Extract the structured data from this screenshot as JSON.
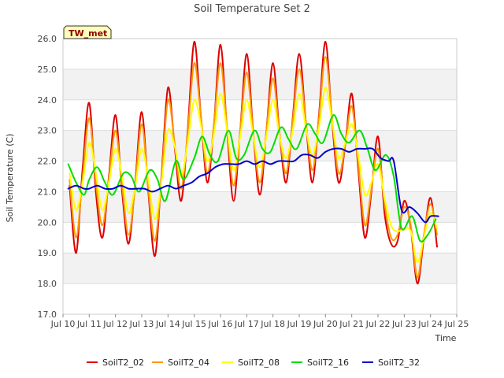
{
  "chart_data": {
    "type": "line",
    "title": "Soil Temperature Set 2",
    "xlabel": "Time",
    "ylabel": "Soil Temperature (C)",
    "badge": "TW_met",
    "xlim": [
      10,
      25
    ],
    "ylim": [
      17.0,
      26.0
    ],
    "x_ticks": [
      {
        "v": 10,
        "label": "Jul 10"
      },
      {
        "v": 11,
        "label": "Jul 11"
      },
      {
        "v": 12,
        "label": "Jul 12"
      },
      {
        "v": 13,
        "label": "Jul 13"
      },
      {
        "v": 14,
        "label": "Jul 14"
      },
      {
        "v": 15,
        "label": "Jul 15"
      },
      {
        "v": 16,
        "label": "Jul 16"
      },
      {
        "v": 17,
        "label": "Jul 17"
      },
      {
        "v": 18,
        "label": "Jul 18"
      },
      {
        "v": 19,
        "label": "Jul 19"
      },
      {
        "v": 20,
        "label": "Jul 20"
      },
      {
        "v": 21,
        "label": "Jul 21"
      },
      {
        "v": 22,
        "label": "Jul 22"
      },
      {
        "v": 23,
        "label": "Jul 23"
      },
      {
        "v": 24,
        "label": "Jul 24"
      },
      {
        "v": 25,
        "label": "Jul 25"
      }
    ],
    "y_ticks": [
      {
        "v": 17,
        "label": "17.0"
      },
      {
        "v": 18,
        "label": "18.0"
      },
      {
        "v": 19,
        "label": "19.0"
      },
      {
        "v": 20,
        "label": "20.0"
      },
      {
        "v": 21,
        "label": "21.0"
      },
      {
        "v": 22,
        "label": "22.0"
      },
      {
        "v": 23,
        "label": "23.0"
      },
      {
        "v": 24,
        "label": "24.0"
      },
      {
        "v": 25,
        "label": "25.0"
      },
      {
        "v": 26,
        "label": "26.0"
      }
    ],
    "grid": true,
    "legend_position": "bottom",
    "series": [
      {
        "name": "SoilT2_02",
        "color": "#dd0000",
        "x": [
          10.25,
          10.5,
          10.75,
          11.0,
          11.25,
          11.5,
          11.75,
          12.0,
          12.25,
          12.5,
          12.75,
          13.0,
          13.25,
          13.5,
          13.75,
          14.0,
          14.25,
          14.5,
          14.75,
          15.0,
          15.25,
          15.5,
          15.75,
          16.0,
          16.25,
          16.5,
          16.75,
          17.0,
          17.25,
          17.5,
          17.75,
          18.0,
          18.25,
          18.5,
          18.75,
          19.0,
          19.25,
          19.5,
          19.75,
          20.0,
          20.25,
          20.5,
          20.75,
          21.0,
          21.25,
          21.5,
          21.75,
          22.0,
          22.25,
          22.5,
          22.75,
          23.0,
          23.25,
          23.5,
          23.75,
          24.0,
          24.25
        ],
        "y": [
          21.2,
          19.0,
          21.8,
          23.9,
          21.0,
          19.5,
          21.5,
          23.5,
          21.0,
          19.3,
          21.3,
          23.6,
          21.0,
          18.9,
          21.5,
          24.4,
          22.5,
          20.7,
          23.0,
          25.9,
          23.5,
          21.3,
          23.2,
          25.8,
          23.0,
          20.7,
          23.0,
          25.5,
          22.9,
          20.9,
          23.0,
          25.2,
          22.9,
          21.3,
          23.4,
          25.5,
          23.3,
          21.3,
          23.5,
          25.9,
          23.3,
          21.3,
          22.5,
          24.2,
          21.7,
          19.5,
          21.0,
          22.8,
          20.3,
          19.3,
          19.4,
          20.7,
          19.8,
          18.0,
          19.5,
          20.8,
          19.2
        ]
      },
      {
        "name": "SoilT2_04",
        "color": "#ff9900",
        "x": [
          10.25,
          10.5,
          10.75,
          11.0,
          11.25,
          11.5,
          11.75,
          12.0,
          12.25,
          12.5,
          12.75,
          13.0,
          13.25,
          13.5,
          13.75,
          14.0,
          14.25,
          14.5,
          14.75,
          15.0,
          15.25,
          15.5,
          15.75,
          16.0,
          16.25,
          16.5,
          16.75,
          17.0,
          17.25,
          17.5,
          17.75,
          18.0,
          18.25,
          18.5,
          18.75,
          19.0,
          19.25,
          19.5,
          19.75,
          20.0,
          20.25,
          20.5,
          20.75,
          21.0,
          21.25,
          21.5,
          21.75,
          22.0,
          22.25,
          22.5,
          22.75,
          23.0,
          23.25,
          23.5,
          23.75,
          24.0,
          24.25
        ],
        "y": [
          21.4,
          19.5,
          21.5,
          23.4,
          21.3,
          19.9,
          21.4,
          23.0,
          21.2,
          19.6,
          21.2,
          23.2,
          21.1,
          19.4,
          21.4,
          24.0,
          22.6,
          21.1,
          22.9,
          25.2,
          23.5,
          21.6,
          23.2,
          25.2,
          23.1,
          21.2,
          23.0,
          24.9,
          22.9,
          21.3,
          23.0,
          24.7,
          22.9,
          21.6,
          23.3,
          25.0,
          23.3,
          21.7,
          23.4,
          25.4,
          23.4,
          21.6,
          22.5,
          23.8,
          21.9,
          19.9,
          21.1,
          22.4,
          20.6,
          19.5,
          19.6,
          20.5,
          19.9,
          18.2,
          19.6,
          20.6,
          19.6
        ]
      },
      {
        "name": "SoilT2_08",
        "color": "#ffff00",
        "x": [
          10.25,
          10.5,
          10.75,
          11.0,
          11.25,
          11.5,
          11.75,
          12.0,
          12.25,
          12.5,
          12.75,
          13.0,
          13.25,
          13.5,
          13.75,
          14.0,
          14.25,
          14.5,
          14.75,
          15.0,
          15.25,
          15.5,
          15.75,
          16.0,
          16.25,
          16.5,
          16.75,
          17.0,
          17.25,
          17.5,
          17.75,
          18.0,
          18.25,
          18.5,
          18.75,
          19.0,
          19.25,
          19.5,
          19.75,
          20.0,
          20.25,
          20.5,
          20.75,
          21.0,
          21.25,
          21.5,
          21.75,
          22.0,
          22.25,
          22.5,
          22.75,
          23.0,
          23.25,
          23.5,
          23.75,
          24.0,
          24.25
        ],
        "y": [
          21.6,
          20.4,
          21.3,
          22.6,
          21.6,
          20.4,
          21.3,
          22.4,
          21.5,
          20.3,
          21.2,
          22.4,
          21.4,
          20.1,
          21.3,
          23.0,
          22.5,
          21.5,
          22.6,
          24.0,
          23.2,
          22.0,
          22.9,
          24.2,
          23.0,
          21.7,
          22.8,
          24.0,
          22.8,
          21.8,
          22.8,
          24.0,
          22.8,
          22.1,
          23.0,
          24.2,
          23.1,
          22.2,
          23.1,
          24.4,
          23.3,
          22.1,
          22.6,
          23.2,
          22.2,
          20.9,
          21.3,
          21.9,
          20.8,
          19.9,
          19.7,
          19.8,
          19.7,
          18.7,
          19.5,
          20.3,
          19.8
        ]
      },
      {
        "name": "SoilT2_16",
        "color": "#00dd00",
        "x": [
          10.2,
          10.5,
          10.8,
          11.0,
          11.3,
          11.6,
          11.9,
          12.3,
          12.6,
          12.9,
          13.3,
          13.6,
          13.9,
          14.3,
          14.6,
          15.0,
          15.3,
          15.6,
          15.9,
          16.3,
          16.6,
          16.9,
          17.3,
          17.6,
          17.9,
          18.3,
          18.6,
          18.9,
          19.3,
          19.6,
          19.9,
          20.3,
          20.6,
          20.9,
          21.3,
          21.6,
          21.9,
          22.3,
          22.6,
          22.9,
          23.3,
          23.6,
          23.9,
          24.2
        ],
        "y": [
          21.9,
          21.3,
          20.9,
          21.4,
          21.8,
          21.3,
          20.9,
          21.6,
          21.5,
          21.0,
          21.7,
          21.4,
          20.7,
          22.0,
          21.4,
          22.1,
          22.8,
          22.2,
          22.0,
          23.0,
          22.1,
          22.2,
          23.0,
          22.4,
          22.3,
          23.1,
          22.7,
          22.4,
          23.2,
          22.9,
          22.6,
          23.5,
          22.9,
          22.6,
          23.0,
          22.4,
          21.7,
          22.2,
          21.5,
          19.8,
          20.2,
          19.4,
          19.6,
          20.1
        ]
      },
      {
        "name": "SoilT2_32",
        "color": "#0000cc",
        "x": [
          10.2,
          10.5,
          10.8,
          11.0,
          11.3,
          11.6,
          11.9,
          12.2,
          12.5,
          12.8,
          13.1,
          13.4,
          13.7,
          14.0,
          14.3,
          14.6,
          14.9,
          15.2,
          15.5,
          15.8,
          16.1,
          16.4,
          16.7,
          17.0,
          17.3,
          17.6,
          17.9,
          18.2,
          18.5,
          18.8,
          19.1,
          19.4,
          19.7,
          20.0,
          20.3,
          20.6,
          20.9,
          21.2,
          21.5,
          21.8,
          22.1,
          22.4,
          22.6,
          22.9,
          23.2,
          23.5,
          23.8,
          24.0,
          24.3
        ],
        "y": [
          21.1,
          21.2,
          21.1,
          21.1,
          21.2,
          21.1,
          21.1,
          21.2,
          21.1,
          21.1,
          21.1,
          21.0,
          21.1,
          21.2,
          21.1,
          21.2,
          21.3,
          21.5,
          21.6,
          21.8,
          21.9,
          21.9,
          21.9,
          22.0,
          21.9,
          22.0,
          21.9,
          22.0,
          22.0,
          22.0,
          22.2,
          22.2,
          22.1,
          22.3,
          22.4,
          22.4,
          22.3,
          22.4,
          22.4,
          22.4,
          22.1,
          22.0,
          22.0,
          20.4,
          20.5,
          20.3,
          20.0,
          20.2,
          20.2
        ]
      }
    ]
  }
}
